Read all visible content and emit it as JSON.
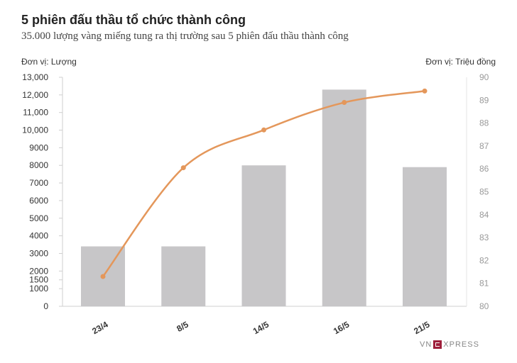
{
  "title": "5 phiên đấu thầu tổ chức thành công",
  "subtitle": "35.000 lượng vàng miếng tung ra thị trường sau 5 phiên đấu thầu thành công",
  "logo": {
    "left": "VN",
    "right": "XPRESS"
  },
  "chart_data": {
    "type": "bar",
    "categories": [
      "23/4",
      "8/5",
      "14/5",
      "16/5",
      "21/5"
    ],
    "series": [
      {
        "type": "bar",
        "axis": "left",
        "values": [
          3400,
          3400,
          8000,
          12300,
          7900
        ],
        "color": "#c7c6c8"
      },
      {
        "type": "line",
        "axis": "right",
        "values": [
          81.3,
          86.05,
          87.7,
          88.9,
          89.4
        ],
        "color": "#e4975b"
      }
    ],
    "left_axis": {
      "label": "Đơn vị: Lượng",
      "ylim": [
        0,
        13000
      ],
      "ticks": [
        0,
        1000,
        1500,
        2000,
        3000,
        4000,
        5000,
        6000,
        7000,
        8000,
        9000,
        10000,
        11000,
        12000,
        13000
      ],
      "tick_labels": [
        "0",
        "1000",
        "1500",
        "2000",
        "3000",
        "4000",
        "5000",
        "6000",
        "7000",
        "8000",
        "9000",
        "10,000",
        "11,000",
        "12,000",
        "13,000"
      ]
    },
    "right_axis": {
      "label": "Đơn vị: Triệu đồng",
      "ylim": [
        80,
        90
      ],
      "ticks": [
        80,
        81,
        82,
        83,
        84,
        85,
        86,
        87,
        88,
        89,
        90
      ],
      "tick_labels": [
        "80",
        "81",
        "82",
        "83",
        "84",
        "85",
        "86",
        "87",
        "88",
        "89",
        "90"
      ]
    },
    "grid": false
  }
}
